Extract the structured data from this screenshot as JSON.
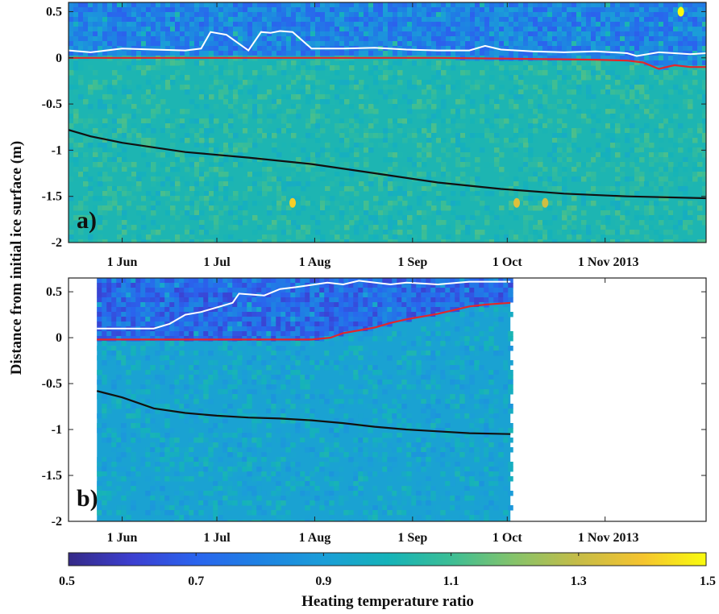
{
  "chart_data": [
    {
      "type": "heatmap",
      "panel_label": "a)",
      "ylabel": "Distance from initial ice surface (m)",
      "ylim": [
        -2,
        0.6
      ],
      "yticks": [
        "0.5",
        "0",
        "-0.5",
        "-1",
        "-1.5",
        "-2"
      ],
      "ytick_values": [
        0.5,
        0,
        -0.5,
        -1,
        -1.5,
        -2
      ],
      "xticks": [
        "1 Jun",
        "1 Jul",
        "1 Aug",
        "1 Sep",
        "1 Oct",
        "1 Nov 2013"
      ],
      "xtick_days": [
        0,
        30,
        61,
        92,
        122,
        153
      ],
      "xlim_days": [
        -17,
        185
      ],
      "field": {
        "day_range": [
          -17,
          185
        ],
        "background_ice": 1.02,
        "snow_layer_value": 0.8,
        "hotspots": [
          {
            "day": 54,
            "depth": -1.57,
            "value": 1.42
          },
          {
            "day": 125,
            "depth": -1.57,
            "value": 1.35
          },
          {
            "day": 134,
            "depth": -1.57,
            "value": 1.32
          },
          {
            "day": 177,
            "depth": 0.5,
            "value": 1.5
          }
        ]
      },
      "series": [
        {
          "color": "#ffffff",
          "x": [
            -17,
            -10,
            0,
            10,
            20,
            25,
            28,
            33,
            40,
            44,
            47,
            50,
            54,
            60,
            70,
            80,
            90,
            100,
            110,
            115,
            120,
            130,
            140,
            150,
            160,
            163,
            170,
            175,
            180,
            185
          ],
          "y": [
            0.08,
            0.06,
            0.1,
            0.09,
            0.08,
            0.1,
            0.28,
            0.25,
            0.08,
            0.28,
            0.27,
            0.29,
            0.28,
            0.1,
            0.1,
            0.11,
            0.09,
            0.08,
            0.08,
            0.13,
            0.09,
            0.07,
            0.06,
            0.07,
            0.05,
            0.02,
            0.06,
            0.05,
            0.04,
            0.05
          ]
        },
        {
          "color": "#e2262b",
          "x": [
            -17,
            0,
            50,
            100,
            150,
            160,
            165,
            170,
            175,
            180,
            185
          ],
          "y": [
            0.0,
            0.0,
            0.0,
            0.0,
            -0.02,
            -0.03,
            -0.05,
            -0.12,
            -0.08,
            -0.1,
            -0.1
          ]
        },
        {
          "color": "#111111",
          "x": [
            -17,
            -10,
            0,
            20,
            40,
            60,
            80,
            100,
            120,
            140,
            160,
            185
          ],
          "y": [
            -0.78,
            -0.85,
            -0.92,
            -1.02,
            -1.08,
            -1.15,
            -1.25,
            -1.35,
            -1.42,
            -1.47,
            -1.5,
            -1.52
          ]
        }
      ]
    },
    {
      "type": "heatmap",
      "panel_label": "b)",
      "ylim": [
        -2,
        0.65
      ],
      "yticks": [
        "0.5",
        "0",
        "-0.5",
        "-1",
        "-1.5",
        "-2"
      ],
      "ytick_values": [
        0.5,
        0,
        -0.5,
        -1,
        -1.5,
        -2
      ],
      "xticks": [
        "1 Jun",
        "1 Jul",
        "1 Aug",
        "1 Sep",
        "1 Oct",
        "1 Nov 2013"
      ],
      "xtick_days": [
        0,
        30,
        61,
        92,
        122,
        153
      ],
      "xlim_days": [
        -17,
        185
      ],
      "field": {
        "day_range": [
          -8,
          123
        ],
        "background_ice": 0.92,
        "snow_layer_value": 0.72,
        "hotspots": []
      },
      "series": [
        {
          "color": "#ffffff",
          "x": [
            -8,
            0,
            10,
            15,
            20,
            25,
            35,
            37,
            45,
            50,
            55,
            65,
            70,
            75,
            85,
            90,
            100,
            110,
            123
          ],
          "y": [
            0.1,
            0.1,
            0.1,
            0.15,
            0.25,
            0.28,
            0.38,
            0.48,
            0.46,
            0.53,
            0.55,
            0.6,
            0.58,
            0.62,
            0.58,
            0.6,
            0.58,
            0.61,
            0.61
          ]
        },
        {
          "color": "#e2262b",
          "x": [
            -8,
            0,
            60,
            66,
            70,
            75,
            80,
            85,
            90,
            95,
            100,
            105,
            110,
            115,
            123
          ],
          "y": [
            -0.02,
            -0.02,
            -0.02,
            0.0,
            0.05,
            0.08,
            0.11,
            0.16,
            0.2,
            0.23,
            0.26,
            0.3,
            0.34,
            0.36,
            0.38
          ]
        },
        {
          "color": "#111111",
          "x": [
            -8,
            0,
            10,
            20,
            30,
            40,
            50,
            60,
            70,
            80,
            90,
            100,
            110,
            123
          ],
          "y": [
            -0.58,
            -0.65,
            -0.77,
            -0.82,
            -0.85,
            -0.87,
            -0.88,
            -0.9,
            -0.93,
            -0.97,
            -1.0,
            -1.02,
            -1.04,
            -1.05
          ]
        }
      ]
    }
  ],
  "colorbar": {
    "label": "Heating temperature ratio",
    "range": [
      0.5,
      1.5
    ],
    "ticks": [
      "0.5",
      "0.7",
      "0.9",
      "1.1",
      "1.3",
      "1.5"
    ],
    "tick_values": [
      0.5,
      0.7,
      0.9,
      1.1,
      1.3,
      1.5
    ],
    "colormap": "parula"
  }
}
